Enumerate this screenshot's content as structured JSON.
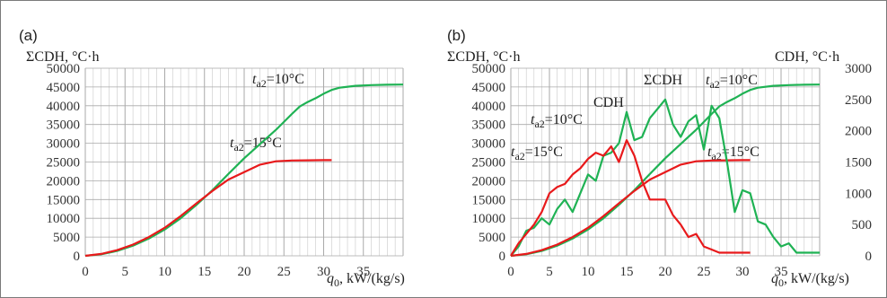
{
  "colors": {
    "green": "#1fb254",
    "red": "#e8191b",
    "grid": "#c8c8c8"
  },
  "chart_data": [
    {
      "panel_label": "(a)",
      "type": "line",
      "ylabel": "ΣCDH, °C·h",
      "xlabel_var": "q",
      "xlabel_sub": "0",
      "xlabel_unit": ", kW/(kg/s)",
      "xlim": [
        0,
        40
      ],
      "ylim": [
        0,
        50000
      ],
      "x_ticks": [
        "0",
        "5",
        "10",
        "15",
        "20",
        "25",
        "30",
        "35"
      ],
      "y_ticks": [
        "0",
        "5000",
        "10000",
        "15000",
        "20000",
        "25000",
        "30000",
        "35000",
        "40000",
        "45000",
        "50000"
      ],
      "series": [
        {
          "name": "ta2=10°C",
          "color": "green",
          "x": [
            0,
            2,
            4,
            6,
            8,
            10,
            12,
            14,
            16,
            18,
            20,
            22,
            24,
            26,
            27,
            28,
            29,
            30,
            31,
            32,
            34,
            36,
            38,
            40
          ],
          "y": [
            0,
            400,
            1300,
            2700,
            4600,
            7000,
            10000,
            13600,
            17500,
            21800,
            26000,
            29800,
            33600,
            37800,
            39800,
            41000,
            42000,
            43200,
            44200,
            44800,
            45300,
            45500,
            45600,
            45650
          ]
        },
        {
          "name": "ta2=15°C",
          "color": "red",
          "x": [
            0,
            2,
            4,
            6,
            8,
            10,
            12,
            14,
            16,
            18,
            20,
            22,
            24,
            26,
            28,
            30,
            31
          ],
          "y": [
            0,
            500,
            1500,
            3000,
            5000,
            7500,
            10600,
            14000,
            17300,
            20300,
            22300,
            24300,
            25200,
            25400,
            25450,
            25500,
            25500
          ]
        }
      ],
      "annotations": [
        {
          "text_var": "t",
          "text_sub": "a2",
          "text_rest": "=10°C"
        },
        {
          "text_var": "t",
          "text_sub": "a2",
          "text_rest": "=15°C"
        }
      ]
    },
    {
      "panel_label": "(b)",
      "type": "line",
      "ylabel": "ΣCDH, °C·h",
      "y2label": "CDH, °C·h",
      "xlabel_var": "q",
      "xlabel_sub": "0",
      "xlabel_unit": ", kW/(kg/s)",
      "xlim": [
        0,
        40
      ],
      "ylim": [
        0,
        50000
      ],
      "y2lim": [
        0,
        3000
      ],
      "x_ticks": [
        "0",
        "5",
        "10",
        "15",
        "20",
        "25",
        "30",
        "35"
      ],
      "y_ticks": [
        "0",
        "5000",
        "10000",
        "15000",
        "20000",
        "25000",
        "30000",
        "35000",
        "40000",
        "45000",
        "50000"
      ],
      "y2_ticks": [
        "0",
        "500",
        "1000",
        "1500",
        "2000",
        "2500",
        "3000"
      ],
      "series": [
        {
          "name": "ΣCDH ta2=10°C",
          "color": "green",
          "axis": "left",
          "x": [
            0,
            2,
            4,
            6,
            8,
            10,
            12,
            14,
            16,
            18,
            20,
            22,
            24,
            26,
            27,
            28,
            29,
            30,
            31,
            32,
            34,
            36,
            38,
            40
          ],
          "y": [
            0,
            400,
            1300,
            2700,
            4600,
            7000,
            10000,
            13600,
            17500,
            21800,
            26000,
            29800,
            33600,
            37800,
            39800,
            41000,
            42000,
            43200,
            44200,
            44800,
            45300,
            45500,
            45600,
            45650
          ]
        },
        {
          "name": "ΣCDH ta2=15°C",
          "color": "red",
          "axis": "left",
          "x": [
            0,
            2,
            4,
            6,
            8,
            10,
            12,
            14,
            16,
            18,
            20,
            22,
            24,
            26,
            28,
            30,
            31
          ],
          "y": [
            0,
            500,
            1500,
            3000,
            5000,
            7500,
            10600,
            14000,
            17300,
            20300,
            22300,
            24300,
            25200,
            25400,
            25450,
            25500,
            25500
          ]
        },
        {
          "name": "CDH ta2=10°C",
          "color": "green",
          "axis": "right",
          "x": [
            0,
            1,
            2,
            3,
            4,
            5,
            6,
            7,
            8,
            9,
            10,
            11,
            12,
            13,
            14,
            15,
            16,
            17,
            18,
            19,
            20,
            21,
            22,
            23,
            24,
            25,
            26,
            27,
            28,
            29,
            30,
            31,
            32,
            33,
            34,
            35,
            36,
            37,
            38,
            39,
            40
          ],
          "y": [
            0,
            150,
            400,
            450,
            600,
            500,
            750,
            900,
            700,
            1000,
            1300,
            1200,
            1600,
            1650,
            1800,
            2300,
            1850,
            1900,
            2200,
            2350,
            2500,
            2100,
            1900,
            2150,
            2250,
            1700,
            2400,
            2200,
            1500,
            700,
            1050,
            1000,
            550,
            500,
            300,
            150,
            200,
            50,
            50,
            50,
            50
          ]
        },
        {
          "name": "CDH ta2=15°C",
          "color": "red",
          "axis": "right",
          "x": [
            0,
            1,
            2,
            3,
            4,
            5,
            6,
            7,
            8,
            9,
            10,
            11,
            12,
            13,
            14,
            15,
            16,
            17,
            18,
            19,
            20,
            21,
            22,
            23,
            24,
            25,
            26,
            27,
            28,
            29,
            30,
            31
          ],
          "y": [
            0,
            200,
            350,
            500,
            700,
            1000,
            1100,
            1150,
            1300,
            1400,
            1550,
            1650,
            1600,
            1750,
            1500,
            1850,
            1600,
            1200,
            900,
            900,
            900,
            650,
            500,
            300,
            350,
            150,
            100,
            50,
            50,
            50,
            50,
            50
          ]
        }
      ],
      "annotations": [
        {
          "text": "CDH"
        },
        {
          "text": "ΣCDH"
        },
        {
          "text_var": "t",
          "text_sub": "a2",
          "text_rest": "=10°C"
        },
        {
          "text_var": "t",
          "text_sub": "a2",
          "text_rest": "=10°C"
        },
        {
          "text_var": "t",
          "text_sub": "a2",
          "text_rest": "=15°C"
        },
        {
          "text_var": "t",
          "text_sub": "a2",
          "text_rest": "=15°C"
        }
      ]
    }
  ]
}
